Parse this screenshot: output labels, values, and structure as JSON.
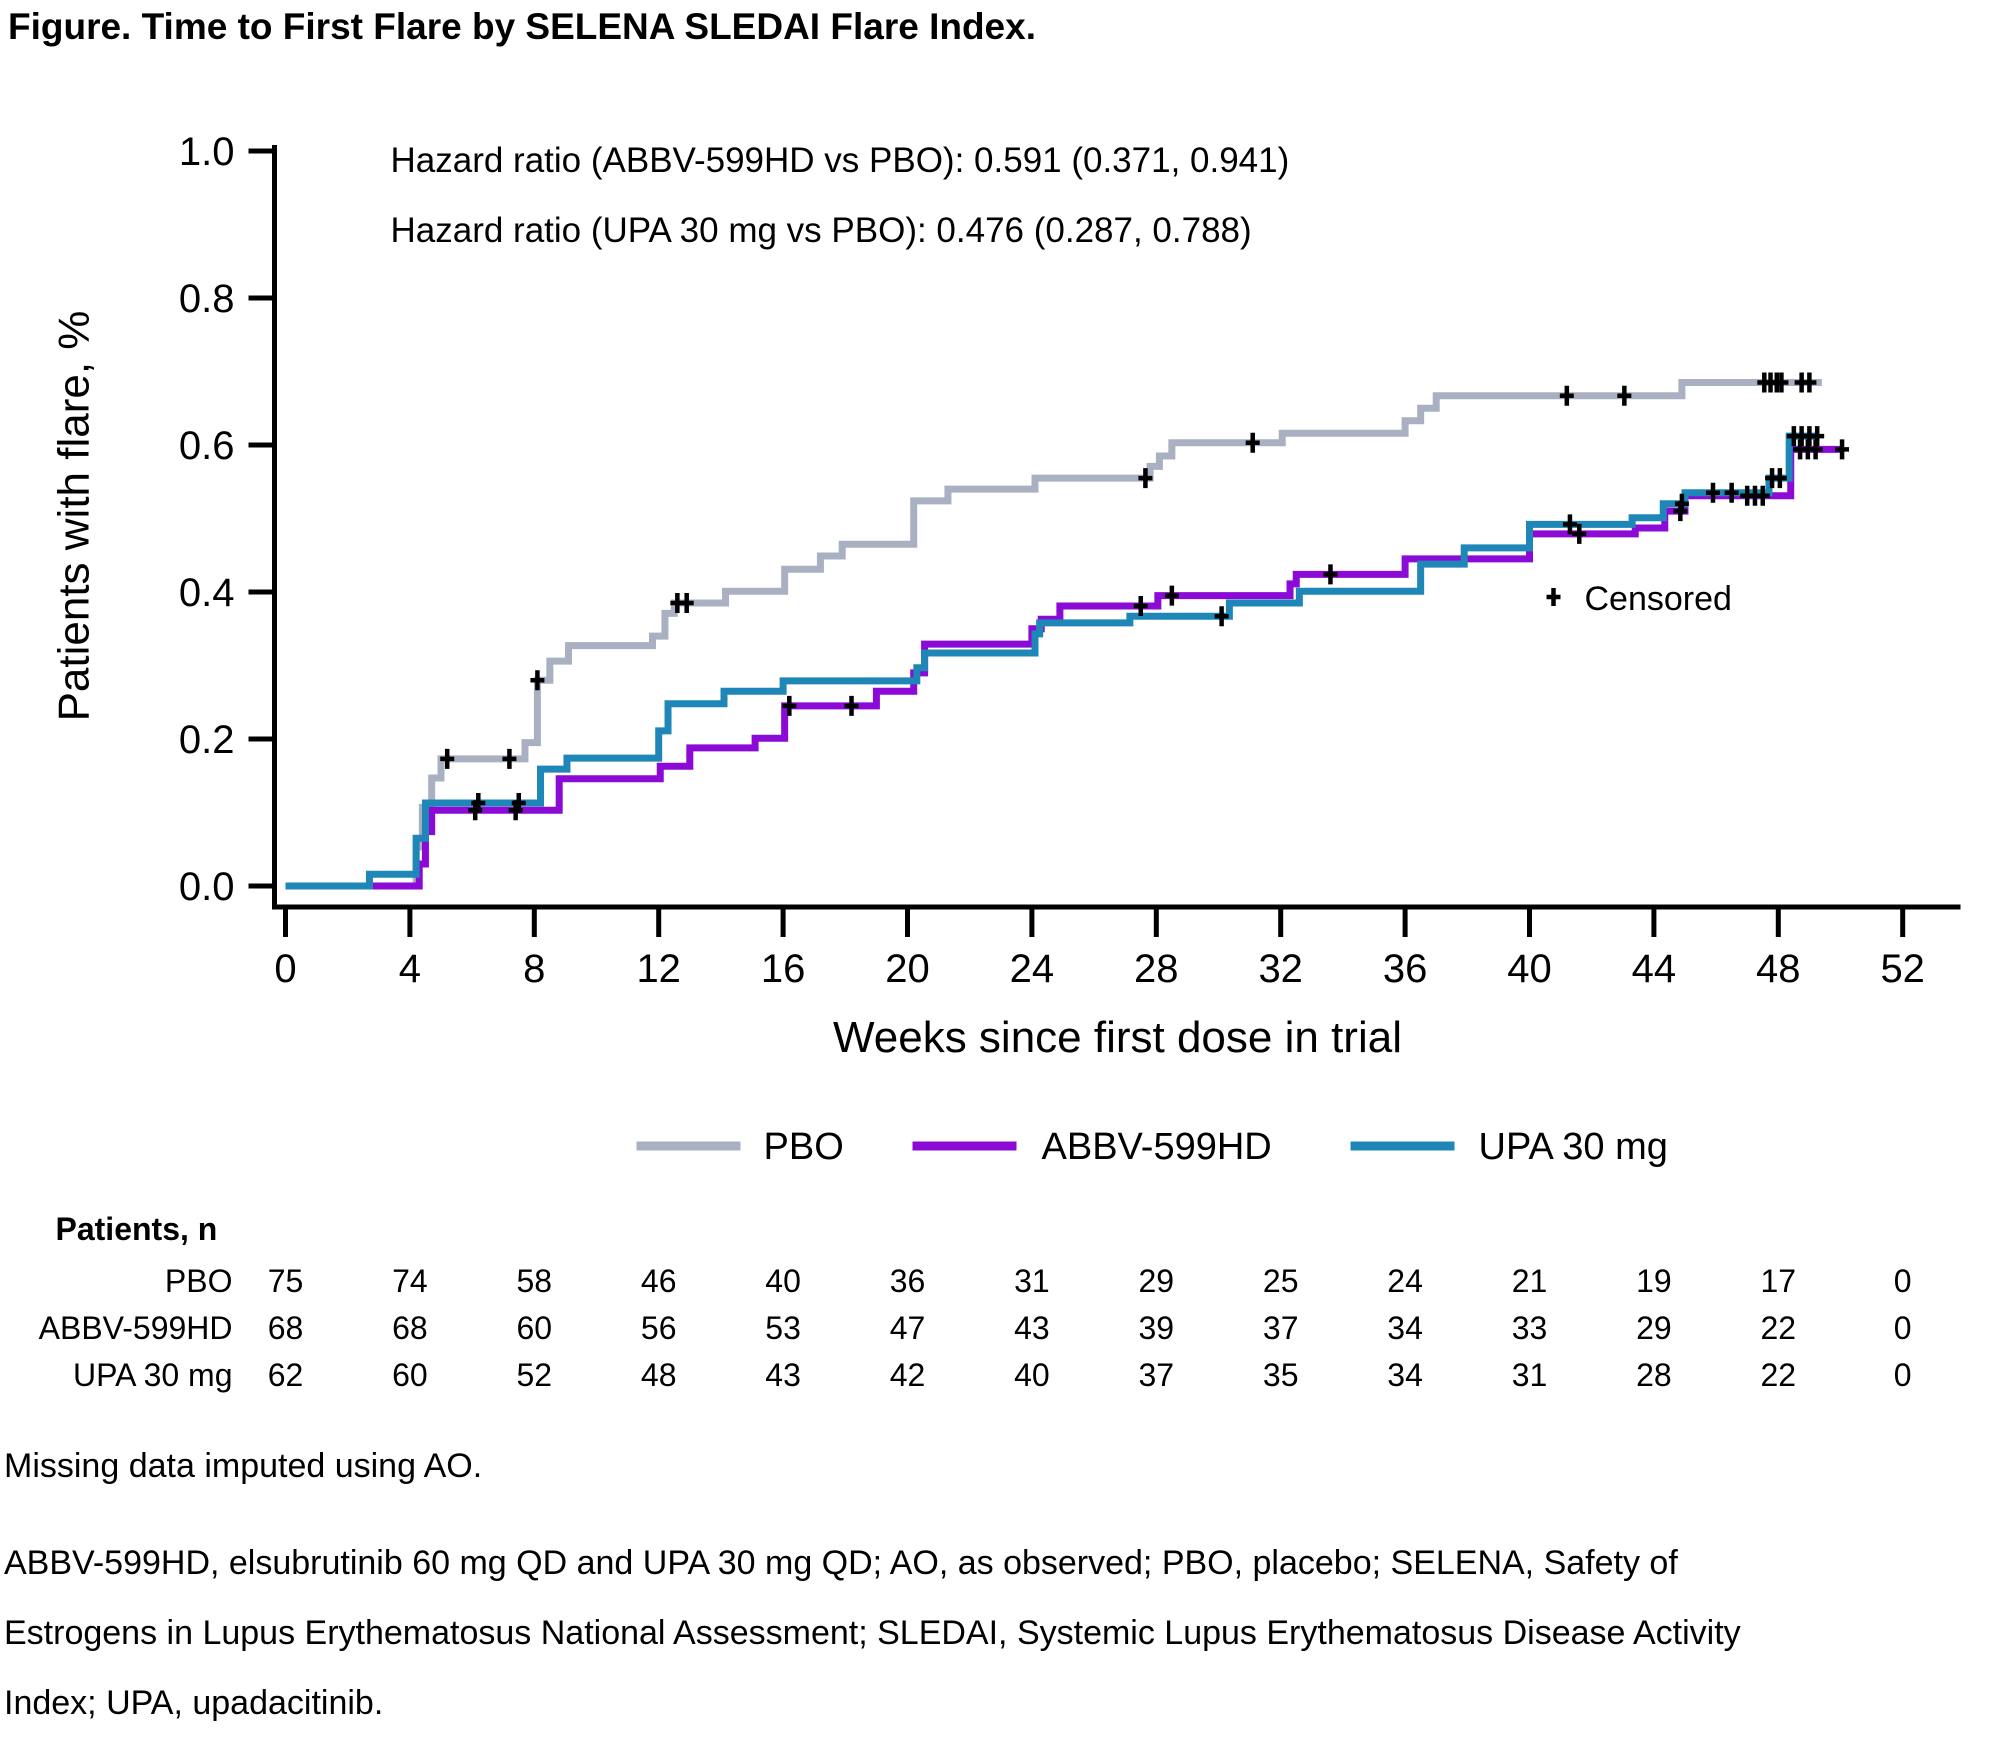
{
  "title": "Figure. Time to First Flare by SELENA SLEDAI Flare Index.",
  "annotations": {
    "hazard_ratio_line1": "Hazard ratio (ABBV-599HD vs PBO): 0.591 (0.371, 0.941)",
    "hazard_ratio_line2": "Hazard ratio (UPA 30 mg vs PBO): 0.476 (0.287, 0.788)",
    "censored_symbol": "+",
    "censored_label": "Censored"
  },
  "footnotes": {
    "line1": "Missing data imputed using AO.",
    "abbrev_lines": [
      "ABBV-599HD, elsubrutinib 60 mg QD and UPA 30 mg QD; AO, as observed; PBO, placebo; SELENA, Safety of",
      "Estrogens in Lupus Erythematosus National Assessment; SLEDAI, Systemic Lupus Erythematosus Disease Activity",
      "Index; UPA, upadacitinib."
    ]
  },
  "risk_table": {
    "header": "Patients, n",
    "weeks": [
      0,
      4,
      8,
      12,
      16,
      20,
      24,
      28,
      32,
      36,
      40,
      44,
      48,
      52
    ]
  },
  "chart_data": {
    "type": "line",
    "subtype": "kaplan-meier-step",
    "title": "Figure. Time to First Flare by SELENA SLEDAI Flare Index.",
    "xlabel": "Weeks since first dose in trial",
    "ylabel": "Patients with flare, %",
    "xlim": [
      0,
      52
    ],
    "ylim": [
      0.0,
      1.0
    ],
    "xticks": [
      0,
      4,
      8,
      12,
      16,
      20,
      24,
      28,
      32,
      36,
      40,
      44,
      48,
      52
    ],
    "yticks": [
      0.0,
      0.2,
      0.4,
      0.6,
      0.8,
      1.0
    ],
    "grid": false,
    "legend_position": "bottom",
    "censor_marker": "plus",
    "series": [
      {
        "name": "PBO",
        "color": "#A9B0C1",
        "at_risk": [
          75,
          74,
          58,
          46,
          40,
          36,
          31,
          29,
          25,
          24,
          21,
          19,
          17,
          0
        ],
        "end_week": 49.4,
        "steps": [
          [
            0,
            0
          ],
          [
            4.2,
            0.053
          ],
          [
            4.4,
            0.107
          ],
          [
            4.7,
            0.147
          ],
          [
            5.0,
            0.173
          ],
          [
            7.7,
            0.195
          ],
          [
            8.1,
            0.28
          ],
          [
            8.5,
            0.306
          ],
          [
            9.1,
            0.327
          ],
          [
            11.8,
            0.34
          ],
          [
            12.2,
            0.371
          ],
          [
            12.5,
            0.385
          ],
          [
            14.15,
            0.401
          ],
          [
            16.05,
            0.431
          ],
          [
            17.2,
            0.449
          ],
          [
            17.9,
            0.465
          ],
          [
            20.2,
            0.524
          ],
          [
            21.3,
            0.54
          ],
          [
            24.1,
            0.555
          ],
          [
            27.8,
            0.571
          ],
          [
            28.1,
            0.585
          ],
          [
            28.5,
            0.603
          ],
          [
            32.05,
            0.616
          ],
          [
            36.0,
            0.633
          ],
          [
            36.5,
            0.65
          ],
          [
            37.0,
            0.667
          ],
          [
            44.9,
            0.685
          ]
        ],
        "censored": [
          [
            5.2,
            0.173
          ],
          [
            7.2,
            0.173
          ],
          [
            8.1,
            0.28
          ],
          [
            12.6,
            0.385
          ],
          [
            12.9,
            0.385
          ],
          [
            27.65,
            0.555
          ],
          [
            31.1,
            0.603
          ],
          [
            41.2,
            0.667
          ],
          [
            43.05,
            0.667
          ],
          [
            47.55,
            0.685
          ],
          [
            47.75,
            0.685
          ],
          [
            47.95,
            0.685
          ],
          [
            48.1,
            0.685
          ],
          [
            48.75,
            0.685
          ],
          [
            49.0,
            0.685
          ]
        ]
      },
      {
        "name": "ABBV-599HD",
        "color": "#8C0AD6",
        "at_risk": [
          68,
          68,
          60,
          56,
          53,
          47,
          43,
          39,
          37,
          34,
          33,
          29,
          22,
          0
        ],
        "end_week": 50.1,
        "steps": [
          [
            0,
            0
          ],
          [
            4.3,
            0.03
          ],
          [
            4.5,
            0.074
          ],
          [
            4.7,
            0.103
          ],
          [
            8.8,
            0.146
          ],
          [
            12.05,
            0.163
          ],
          [
            13.0,
            0.188
          ],
          [
            15.1,
            0.201
          ],
          [
            16.05,
            0.245
          ],
          [
            19.0,
            0.265
          ],
          [
            20.2,
            0.29
          ],
          [
            20.55,
            0.329
          ],
          [
            24.0,
            0.35
          ],
          [
            24.3,
            0.363
          ],
          [
            24.9,
            0.381
          ],
          [
            28.05,
            0.395
          ],
          [
            32.3,
            0.411
          ],
          [
            32.5,
            0.424
          ],
          [
            36.0,
            0.445
          ],
          [
            40.0,
            0.479
          ],
          [
            43.4,
            0.487
          ],
          [
            44.35,
            0.51
          ],
          [
            45.0,
            0.531
          ],
          [
            48.4,
            0.594
          ]
        ],
        "censored": [
          [
            6.1,
            0.103
          ],
          [
            7.4,
            0.103
          ],
          [
            16.2,
            0.245
          ],
          [
            18.2,
            0.245
          ],
          [
            27.5,
            0.381
          ],
          [
            28.5,
            0.395
          ],
          [
            33.6,
            0.424
          ],
          [
            41.6,
            0.479
          ],
          [
            44.85,
            0.51
          ],
          [
            47.0,
            0.531
          ],
          [
            47.25,
            0.531
          ],
          [
            47.5,
            0.531
          ],
          [
            48.7,
            0.594
          ],
          [
            48.95,
            0.594
          ],
          [
            49.2,
            0.594
          ],
          [
            50.05,
            0.594
          ]
        ]
      },
      {
        "name": "UPA 30 mg",
        "color": "#1F86B8",
        "at_risk": [
          62,
          60,
          52,
          48,
          43,
          42,
          40,
          37,
          35,
          34,
          31,
          28,
          22,
          0
        ],
        "end_week": 49.3,
        "steps": [
          [
            0,
            0
          ],
          [
            2.7,
            0.016
          ],
          [
            4.2,
            0.065
          ],
          [
            4.5,
            0.113
          ],
          [
            8.2,
            0.159
          ],
          [
            9.05,
            0.174
          ],
          [
            12.0,
            0.211
          ],
          [
            12.3,
            0.248
          ],
          [
            14.1,
            0.265
          ],
          [
            16.0,
            0.279
          ],
          [
            20.3,
            0.297
          ],
          [
            20.55,
            0.317
          ],
          [
            24.1,
            0.343
          ],
          [
            24.25,
            0.358
          ],
          [
            27.15,
            0.367
          ],
          [
            30.35,
            0.385
          ],
          [
            32.6,
            0.401
          ],
          [
            36.5,
            0.438
          ],
          [
            37.9,
            0.46
          ],
          [
            40.0,
            0.492
          ],
          [
            43.3,
            0.501
          ],
          [
            44.3,
            0.52
          ],
          [
            45.0,
            0.535
          ],
          [
            47.7,
            0.555
          ],
          [
            48.35,
            0.612
          ]
        ],
        "censored": [
          [
            6.2,
            0.113
          ],
          [
            7.5,
            0.113
          ],
          [
            30.1,
            0.367
          ],
          [
            41.3,
            0.492
          ],
          [
            44.9,
            0.52
          ],
          [
            45.9,
            0.535
          ],
          [
            46.5,
            0.535
          ],
          [
            47.8,
            0.555
          ],
          [
            48.05,
            0.555
          ],
          [
            48.5,
            0.612
          ],
          [
            48.75,
            0.612
          ],
          [
            49.0,
            0.612
          ],
          [
            49.25,
            0.612
          ]
        ]
      }
    ]
  }
}
